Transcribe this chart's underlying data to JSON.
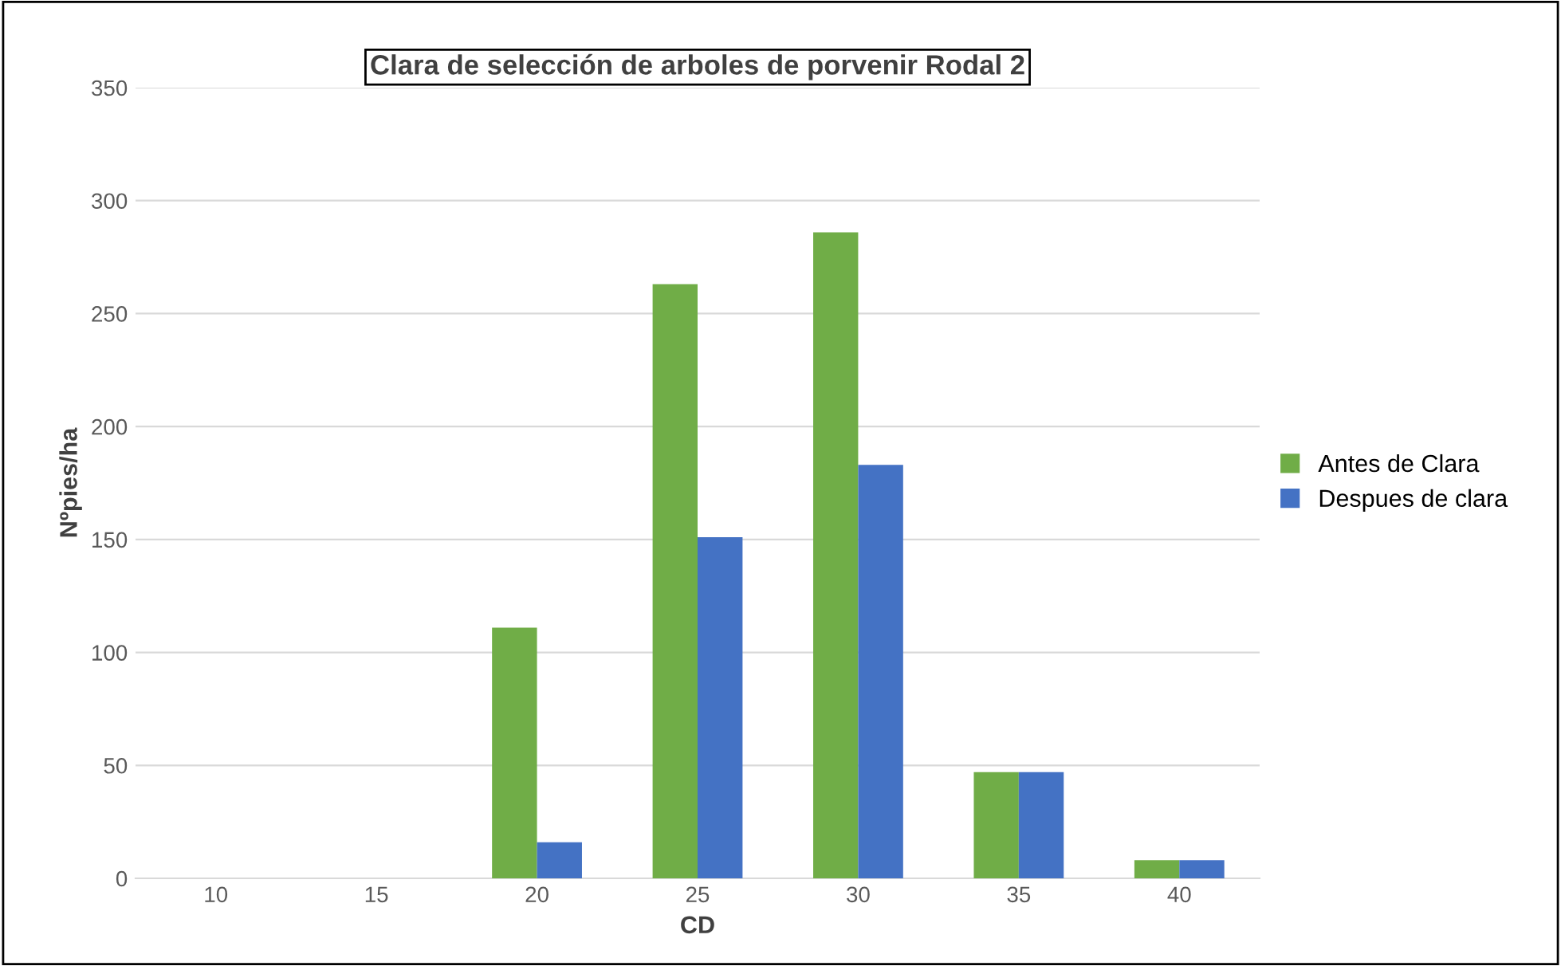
{
  "chart_data": {
    "type": "bar",
    "title": "Clara de selección de arboles de porvenir Rodal 2",
    "xlabel": "CD",
    "ylabel": "Nºpies/ha",
    "categories": [
      "10",
      "15",
      "20",
      "25",
      "30",
      "35",
      "40"
    ],
    "series": [
      {
        "name": "Antes de Clara",
        "color": "#70ad47",
        "values": [
          0,
          0,
          111,
          263,
          286,
          47,
          8
        ]
      },
      {
        "name": "Despues de clara",
        "color": "#4472c4",
        "values": [
          0,
          0,
          16,
          151,
          183,
          47,
          8
        ]
      }
    ],
    "ylim": [
      0,
      350
    ],
    "yticks": [
      0,
      50,
      100,
      150,
      200,
      250,
      300,
      350
    ],
    "grid": "y",
    "legend": "right"
  }
}
